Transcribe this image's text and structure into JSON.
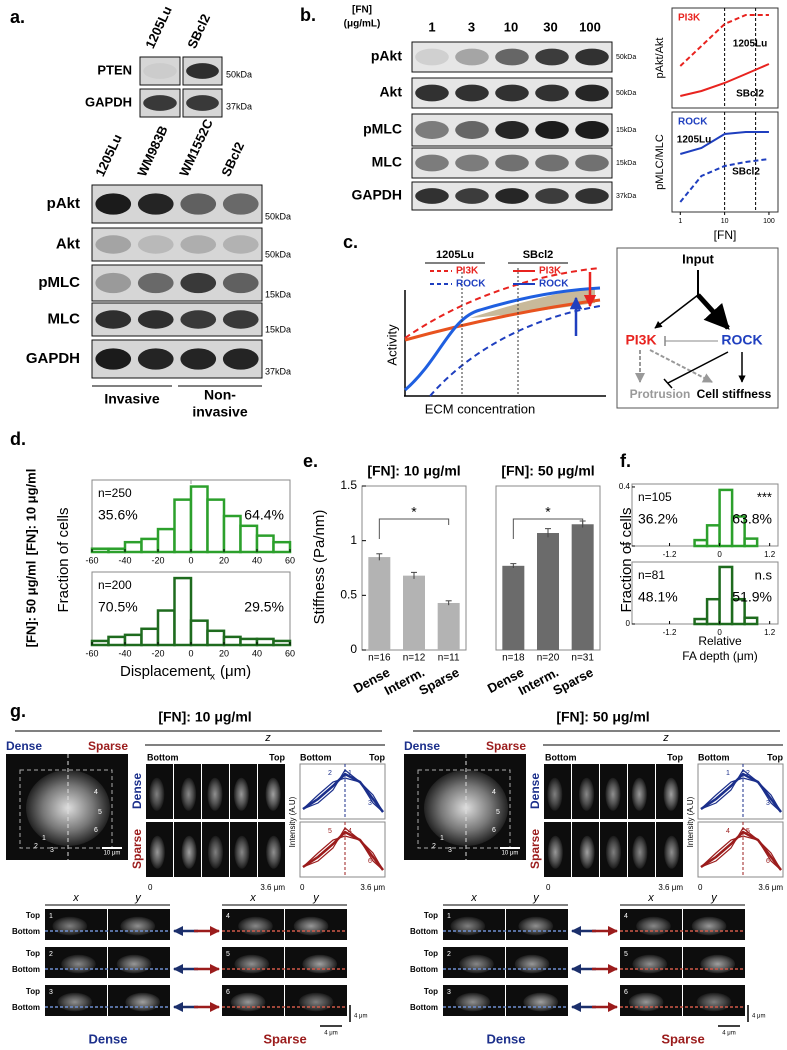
{
  "panel_labels": {
    "a": "a.",
    "b": "b.",
    "c": "c.",
    "d": "d.",
    "e": "e.",
    "f": "f.",
    "g": "g."
  },
  "blots_a": {
    "top_columns": [
      "1205Lu",
      "SBcl2"
    ],
    "top_rows": [
      {
        "name": "PTEN",
        "marker": "50kDa"
      },
      {
        "name": "GAPDH",
        "marker": "37kDa"
      }
    ],
    "columns": [
      "1205Lu",
      "WM983B",
      "WM1552C",
      "SBcl2"
    ],
    "rows": [
      {
        "name": "pAkt",
        "marker": "50kDa"
      },
      {
        "name": "Akt",
        "marker": "50kDa"
      },
      {
        "name": "pMLC",
        "marker": "15kDa"
      },
      {
        "name": "MLC",
        "marker": "15kDa"
      },
      {
        "name": "GAPDH",
        "marker": "37kDa"
      }
    ],
    "groups": [
      [
        "Invasive"
      ],
      [
        "Non-",
        "invasive"
      ]
    ]
  },
  "blots_b": {
    "header": [
      "[FN]",
      "(μg/mL)"
    ],
    "concentrations": [
      1,
      3,
      10,
      30,
      100
    ],
    "rows": [
      {
        "name": "pAkt",
        "marker": "50kDa"
      },
      {
        "name": "Akt",
        "marker": "50kDa"
      },
      {
        "name": "pMLC",
        "marker": "15kDa"
      },
      {
        "name": "MLC",
        "marker": "15kDa"
      },
      {
        "name": "GAPDH",
        "marker": "37kDa"
      }
    ]
  },
  "schematic_c": {
    "groups": [
      {
        "name": "1205Lu",
        "items": [
          "PI3K",
          "ROCK"
        ]
      },
      {
        "name": "SBcl2",
        "items": [
          "PI3K",
          "ROCK"
        ]
      }
    ],
    "y_label": "Activity",
    "x_label": "ECM concentration"
  },
  "diagram_c": {
    "nodes": {
      "input": "Input",
      "pi3k": "PI3K",
      "rock": "ROCK",
      "protrusion": "Protrusion",
      "stiffness": "Cell stiffness"
    }
  },
  "panel_d": {
    "side_labels": [
      "[FN]: 10 μg/ml",
      "[FN]: 50 μg/ml"
    ],
    "y_label": "Fraction of cells",
    "x_label": [
      "Displacement",
      "x",
      "(μm)"
    ]
  },
  "panel_e": {
    "y_label": "Stiffness (Pa/nm)"
  },
  "panel_f": {
    "y_label": "Fraction of cells",
    "x_label": [
      "Relative",
      "FA depth (μm)"
    ]
  },
  "chart_data": [
    {
      "type": "line",
      "title": "PI3K",
      "y_label": "pAkt/Akt",
      "x": [
        1,
        3,
        10,
        30,
        100
      ],
      "xlog": true,
      "xlim": [
        0.8,
        130
      ],
      "ylim": [
        0,
        1
      ],
      "reference_x": [
        10,
        50
      ],
      "series": [
        {
          "name": "1205Lu",
          "color": "#e8231f",
          "dashed": true,
          "values": [
            0.42,
            0.62,
            0.84,
            0.93,
            0.93
          ]
        },
        {
          "name": "SBcl2",
          "color": "#e8231f",
          "dashed": false,
          "values": [
            0.12,
            0.17,
            0.25,
            0.34,
            0.44
          ]
        }
      ]
    },
    {
      "type": "line",
      "title": "ROCK",
      "y_label": "pMLC/MLC",
      "x_label": "[FN]",
      "x": [
        1,
        3,
        10,
        30,
        100
      ],
      "xlog": true,
      "xlim": [
        0.8,
        130
      ],
      "ylim": [
        0,
        1
      ],
      "xticks": [
        1,
        10,
        100
      ],
      "reference_x": [
        10,
        50
      ],
      "series": [
        {
          "name": "1205Lu",
          "color": "#1f3fbf",
          "dashed": false,
          "values": [
            0.58,
            0.64,
            0.78,
            0.8,
            0.8
          ]
        },
        {
          "name": "SBcl2",
          "color": "#1f3fbf",
          "dashed": true,
          "values": [
            0.1,
            0.36,
            0.46,
            0.5,
            0.53
          ]
        }
      ]
    },
    {
      "type": "histogram",
      "bins": [
        -60,
        -50,
        -40,
        -30,
        -20,
        -10,
        0,
        10,
        20,
        30,
        40,
        50,
        60
      ],
      "values": [
        0.01,
        0.01,
        0.03,
        0.04,
        0.07,
        0.16,
        0.2,
        0.16,
        0.11,
        0.08,
        0.05,
        0.03
      ],
      "color": "#2ca02c",
      "xlim": [
        -60,
        60
      ],
      "xticks": [
        -60,
        -40,
        -20,
        0,
        20,
        40,
        60
      ],
      "ylim": [
        0,
        0.22
      ],
      "reference_x": [
        0
      ],
      "annotations": {
        "n": "n=250",
        "left": "35.6%",
        "right": "64.4%"
      }
    },
    {
      "type": "histogram",
      "bins": [
        -60,
        -50,
        -40,
        -30,
        -20,
        -10,
        0,
        10,
        20,
        30,
        40,
        50,
        60
      ],
      "values": [
        0.02,
        0.04,
        0.05,
        0.08,
        0.17,
        0.33,
        0.12,
        0.07,
        0.04,
        0.03,
        0.03,
        0.02
      ],
      "color": "#1e6b1e",
      "xlim": [
        -60,
        60
      ],
      "xticks": [
        -60,
        -40,
        -20,
        0,
        20,
        40,
        60
      ],
      "ylim": [
        0,
        0.36
      ],
      "annotations": {
        "n": "n=200",
        "left": "70.5%",
        "right": "29.5%"
      }
    },
    {
      "type": "bar",
      "title": "[FN]: 10 μg/ml",
      "categories": [
        "Dense",
        "Interm.",
        "Sparse"
      ],
      "values": [
        0.85,
        0.68,
        0.43
      ],
      "errors": [
        0.03,
        0.03,
        0.02
      ],
      "n_labels": [
        "n=16",
        "n=12",
        "n=11"
      ],
      "significance": "*",
      "color": "#b3b3b3",
      "ylim": [
        0,
        1.5
      ],
      "yticks": [
        0,
        0.5,
        1,
        1.5
      ]
    },
    {
      "type": "bar",
      "title": "[FN]: 50 μg/ml",
      "categories": [
        "Dense",
        "Interm.",
        "Sparse"
      ],
      "values": [
        0.77,
        1.07,
        1.15
      ],
      "errors": [
        0.02,
        0.04,
        0.03
      ],
      "n_labels": [
        "n=18",
        "n=20",
        "n=31"
      ],
      "significance": "*",
      "color": "#6b6b6b",
      "ylim": [
        0,
        1.5
      ]
    },
    {
      "type": "histogram",
      "bins": [
        -0.6,
        -0.3,
        0,
        0.3,
        0.6,
        0.9
      ],
      "values": [
        0.04,
        0.14,
        0.38,
        0.2,
        0.05
      ],
      "color": "#2ca02c",
      "xlim": [
        -2.1,
        1.4
      ],
      "xticks": [
        -1.2,
        0,
        1.2
      ],
      "ylim": [
        0,
        0.42
      ],
      "yticks": [
        0,
        0.4
      ],
      "annotations": {
        "n": "n=105",
        "left": "36.2%",
        "right": "63.8%",
        "significance": "***"
      }
    },
    {
      "type": "histogram",
      "bins": [
        -0.6,
        -0.3,
        0,
        0.3,
        0.6,
        0.9
      ],
      "values": [
        0.04,
        0.2,
        0.46,
        0.2,
        0.05
      ],
      "color": "#1e6b1e",
      "xlim": [
        -2.1,
        1.4
      ],
      "xticks": [
        -1.2,
        0,
        1.2
      ],
      "ylim": [
        0,
        0.5
      ],
      "yticks": [
        0
      ],
      "annotations": {
        "n": "n=81",
        "left": "48.1%",
        "right": "51.9%",
        "significance": "n.s"
      }
    }
  ],
  "panel_g": [
    {
      "title": "[FN]: 10 μg/ml",
      "overview": {
        "dense": "Dense",
        "sparse": "Sparse",
        "scale": "10 μm",
        "cells": [
          "1",
          "2",
          "3",
          "4",
          "5",
          "6"
        ]
      },
      "stack": {
        "axis": "z",
        "start": "Bottom",
        "end": "Top",
        "rows": [
          "Dense",
          "Sparse"
        ],
        "ticks": [
          "0",
          "3.6 μm"
        ]
      },
      "profile": {
        "start": "Bottom",
        "end": "Top",
        "y_label": "Intensity (A.U)",
        "ticks": [
          "0",
          "3.6 μm"
        ],
        "dense_ids": [
          "2",
          "1",
          "3"
        ],
        "sparse_ids": [
          "5",
          "4",
          "6"
        ]
      },
      "sections": {
        "axes": [
          "x",
          "y",
          "x",
          "y"
        ],
        "rows": [
          {
            "id": "1",
            "top": "Top",
            "bottom": "Bottom"
          },
          {
            "id": "2",
            "top": "Top",
            "bottom": "Bottom"
          },
          {
            "id": "3",
            "top": "Top",
            "bottom": "Bottom"
          }
        ],
        "right_ids": [
          "4",
          "5",
          "6"
        ],
        "groups": [
          "Dense",
          "Sparse"
        ],
        "scale_v": "4 μm",
        "scale_h": "4 μm"
      }
    },
    {
      "title": "[FN]: 50 μg/ml",
      "overview": {
        "dense": "Dense",
        "sparse": "Sparse",
        "scale": "10 μm",
        "cells": [
          "1",
          "2",
          "3",
          "4",
          "5",
          "6"
        ]
      },
      "stack": {
        "axis": "z",
        "start": "Bottom",
        "end": "Top",
        "rows": [
          "Dense",
          "Sparse"
        ],
        "ticks": [
          "0",
          "3.6 μm"
        ]
      },
      "profile": {
        "start": "Bottom",
        "end": "Top",
        "y_label": "Intensity (A.U)",
        "ticks": [
          "0",
          "3.6 μm"
        ],
        "dense_ids": [
          "1",
          "2",
          "3"
        ],
        "sparse_ids": [
          "4",
          "5",
          "6"
        ]
      },
      "sections": {
        "axes": [
          "x",
          "y",
          "x",
          "y"
        ],
        "rows": [
          {
            "id": "1",
            "top": "Top",
            "bottom": "Bottom"
          },
          {
            "id": "2",
            "top": "Top",
            "bottom": "Bottom"
          },
          {
            "id": "3",
            "top": "Top",
            "bottom": "Bottom"
          }
        ],
        "right_ids": [
          "4",
          "5",
          "6"
        ],
        "groups": [
          "Dense",
          "Sparse"
        ],
        "scale_v": "4 μm",
        "scale_h": "4 μm"
      }
    }
  ]
}
